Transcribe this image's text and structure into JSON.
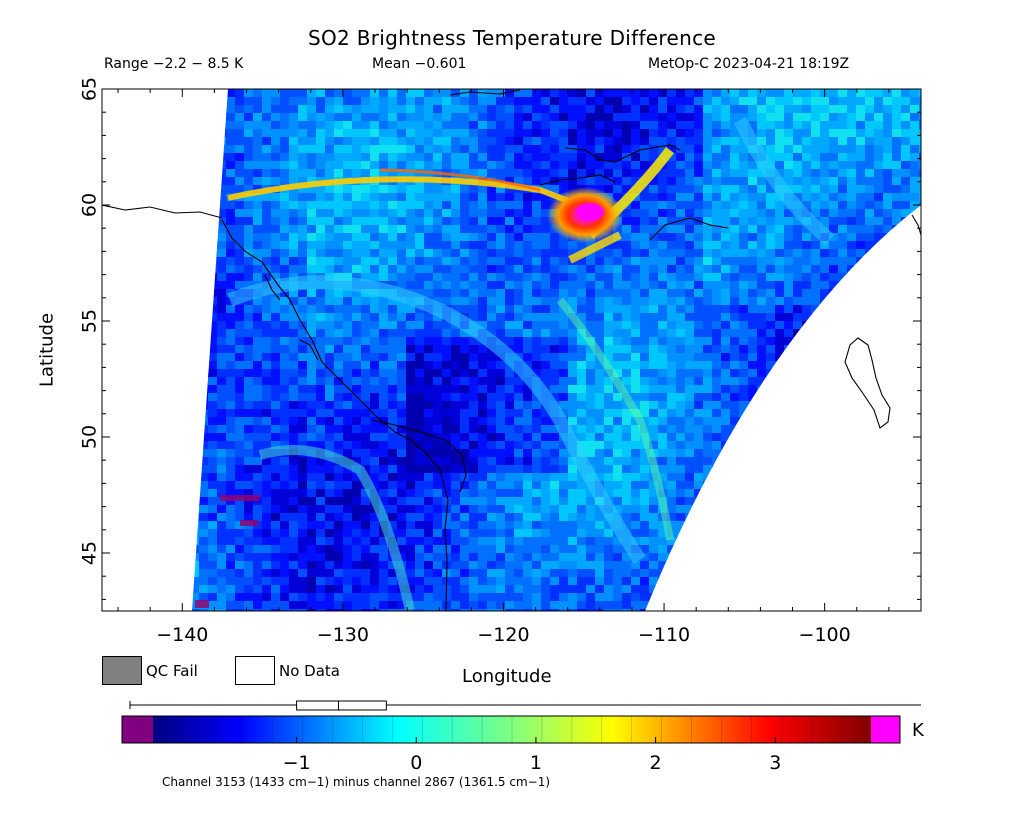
{
  "header": {
    "title": "SO2 Brightness Temperature Difference",
    "range": "Range −2.2 − 8.5 K",
    "mean": "Mean −0.601",
    "satellite_time": "MetOp-C 2023-04-21 18:19Z"
  },
  "map": {
    "xlabel": "Longitude",
    "ylabel": "Latitude",
    "lon_range": [
      -145,
      -94
    ],
    "lat_range": [
      42.5,
      65
    ],
    "lon_ticks": [
      -140,
      -130,
      -120,
      -110,
      -100
    ],
    "lon_tick_labels": [
      "−140",
      "−130",
      "−120",
      "−110",
      "−100"
    ],
    "lat_ticks": [
      45,
      50,
      55,
      60,
      65
    ],
    "lat_tick_labels": [
      "45",
      "50",
      "55",
      "60",
      "65"
    ]
  },
  "legend": {
    "qc_fail": "QC Fail",
    "no_data": "No Data",
    "qc_fail_color": "#808080",
    "no_data_color": "#ffffff"
  },
  "colorbar": {
    "unit": "K",
    "min": -2.2,
    "max": 3.8,
    "ticks": [
      -1,
      0,
      1,
      2,
      3
    ],
    "tick_labels": [
      "−1",
      "0",
      "1",
      "2",
      "3"
    ],
    "under_color": "#800080",
    "over_color": "#ff00ff",
    "boxplot": {
      "q1": -1.0,
      "median": -0.65,
      "q3": -0.25
    }
  },
  "footnote": "Channel 3153 (1433 cm−1) minus channel 2867 (1361.5 cm−1)"
}
